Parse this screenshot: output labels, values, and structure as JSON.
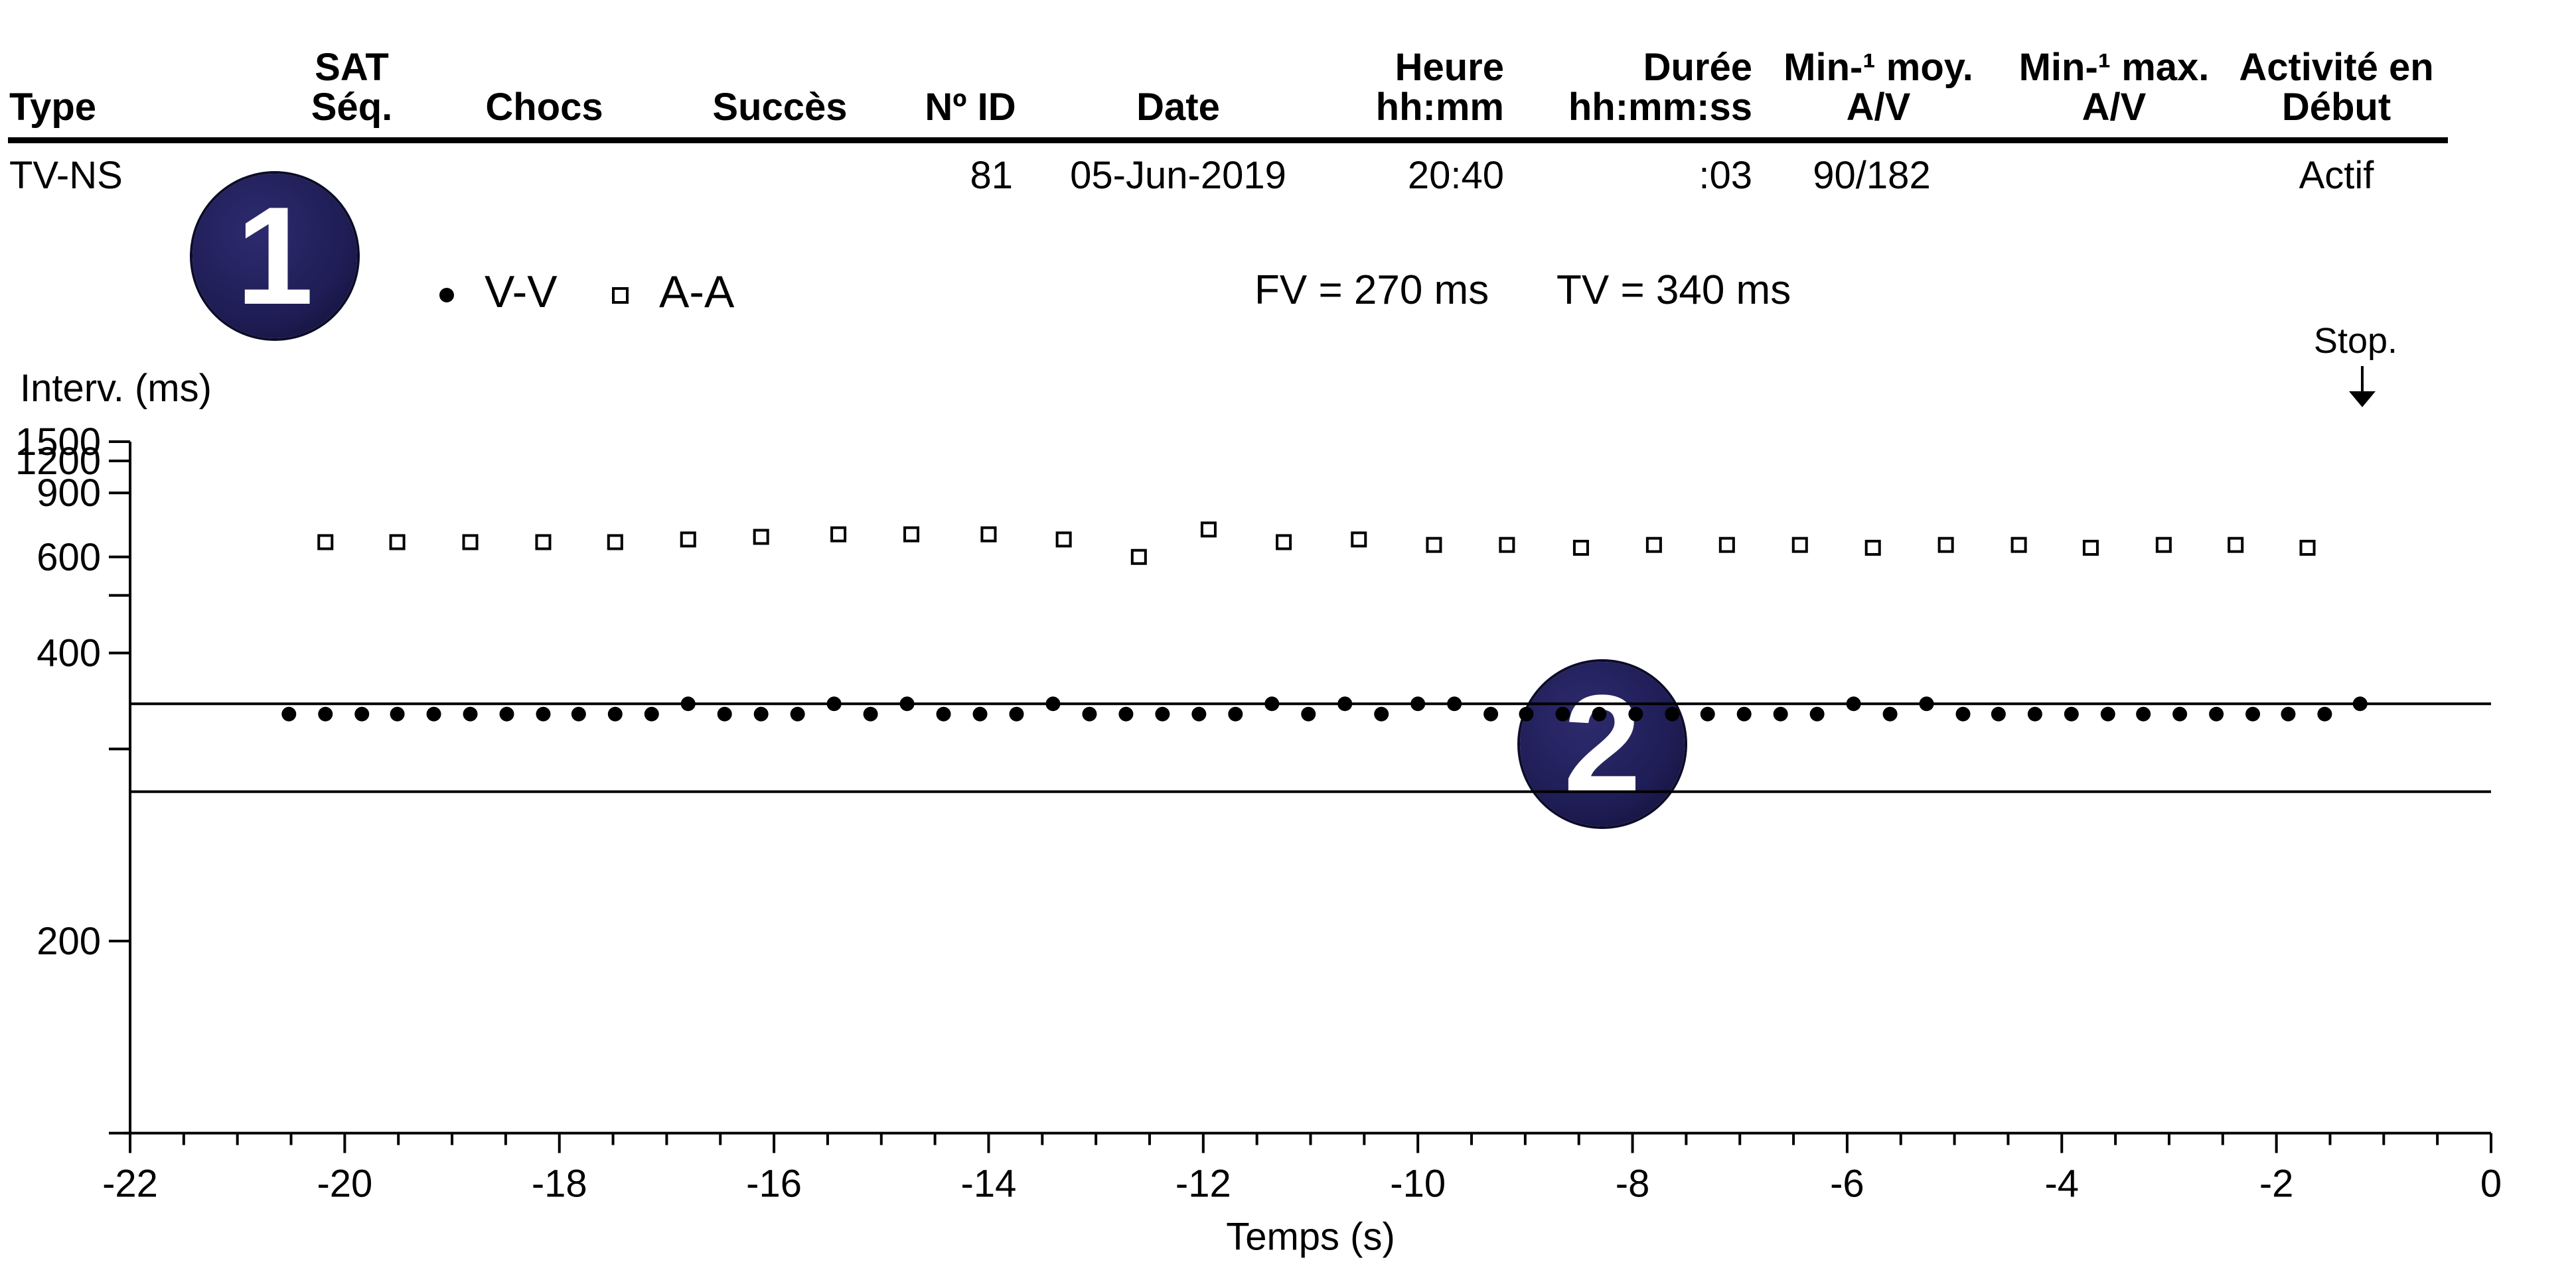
{
  "header": {
    "columns": [
      {
        "key": "type",
        "lines": [
          "Type"
        ]
      },
      {
        "key": "sat",
        "lines": [
          "SAT",
          "Séq."
        ]
      },
      {
        "key": "chocs",
        "lines": [
          "Chocs"
        ]
      },
      {
        "key": "succes",
        "lines": [
          "Succès"
        ]
      },
      {
        "key": "id",
        "lines": [
          "Nº ID"
        ]
      },
      {
        "key": "date",
        "lines": [
          "Date"
        ]
      },
      {
        "key": "heure",
        "lines": [
          "Heure",
          "hh:mm"
        ]
      },
      {
        "key": "duree",
        "lines": [
          "Durée",
          "hh:mm:ss"
        ]
      },
      {
        "key": "moy",
        "lines": [
          "Min-¹ moy.",
          "A/V"
        ]
      },
      {
        "key": "max",
        "lines": [
          "Min-¹ max.",
          "A/V"
        ]
      },
      {
        "key": "activite",
        "lines": [
          "Activité en",
          "Début"
        ]
      }
    ],
    "row": {
      "type": "TV-NS",
      "id": "81",
      "date": "05-Jun-2019",
      "heure": "20:40",
      "duree": ":03",
      "moy": "90/182",
      "activite": "Actif"
    }
  },
  "badges": {
    "one": "1",
    "two": "2"
  },
  "legend": {
    "vv_label": "V-V",
    "aa_label": "A-A"
  },
  "zones": {
    "fv": "FV = 270 ms",
    "tv": "TV = 340 ms"
  },
  "stop_label": "Stop.",
  "chart_data": {
    "type": "scatter",
    "ylabel": "Interv. (ms)",
    "xlabel": "Temps (s)",
    "xlim": [
      -22,
      0
    ],
    "x_ticks": [
      -22,
      -20,
      -18,
      -16,
      -14,
      -12,
      -10,
      -8,
      -6,
      -4,
      -2,
      0
    ],
    "y_scale": "reciprocal",
    "y_ticks_labeled": [
      1500,
      1200,
      900,
      600,
      400,
      200
    ],
    "y_ticks_minor": [
      500,
      300,
      150
    ],
    "y_range": [
      150,
      1500
    ],
    "reference_lines": [
      {
        "label": "TV",
        "value": 340
      },
      {
        "label": "FV",
        "value": 270
      }
    ],
    "stop_marker_x": -1.2,
    "series": [
      {
        "name": "V-V",
        "marker": "filled-circle",
        "x": [
          -20.52,
          -20.18,
          -19.84,
          -19.51,
          -19.17,
          -18.83,
          -18.49,
          -18.15,
          -17.82,
          -17.48,
          -17.14,
          -16.8,
          -16.46,
          -16.12,
          -15.78,
          -15.44,
          -15.1,
          -14.76,
          -14.42,
          -14.08,
          -13.74,
          -13.4,
          -13.06,
          -12.72,
          -12.38,
          -12.04,
          -11.7,
          -11.36,
          -11.02,
          -10.68,
          -10.34,
          -10.0,
          -9.66,
          -9.32,
          -8.99,
          -8.65,
          -8.31,
          -7.97,
          -7.63,
          -7.3,
          -6.96,
          -6.62,
          -6.28,
          -5.94,
          -5.6,
          -5.26,
          -4.92,
          -4.59,
          -4.25,
          -3.91,
          -3.57,
          -3.24,
          -2.9,
          -2.56,
          -2.22,
          -1.89,
          -1.55,
          -1.22
        ],
        "y": [
          330,
          330,
          330,
          330,
          330,
          330,
          330,
          330,
          330,
          330,
          330,
          340,
          330,
          330,
          330,
          340,
          330,
          340,
          330,
          330,
          330,
          340,
          330,
          330,
          330,
          330,
          330,
          340,
          330,
          340,
          330,
          340,
          340,
          330,
          330,
          330,
          330,
          330,
          330,
          330,
          330,
          330,
          330,
          340,
          330,
          340,
          330,
          330,
          330,
          330,
          330,
          330,
          330,
          330,
          330,
          330,
          330,
          340
        ]
      },
      {
        "name": "A-A",
        "marker": "open-square",
        "x": [
          -20.18,
          -19.51,
          -18.83,
          -18.15,
          -17.48,
          -16.8,
          -16.12,
          -15.4,
          -14.72,
          -14.0,
          -13.3,
          -12.6,
          -11.95,
          -11.25,
          -10.55,
          -9.85,
          -9.17,
          -8.48,
          -7.8,
          -7.12,
          -6.44,
          -5.76,
          -5.08,
          -4.4,
          -3.73,
          -3.05,
          -2.38,
          -1.71
        ],
        "y": [
          650,
          650,
          650,
          650,
          650,
          660,
          670,
          680,
          680,
          680,
          660,
          600,
          700,
          650,
          660,
          640,
          640,
          630,
          640,
          640,
          640,
          630,
          640,
          640,
          630,
          640,
          640,
          630
        ]
      }
    ]
  }
}
